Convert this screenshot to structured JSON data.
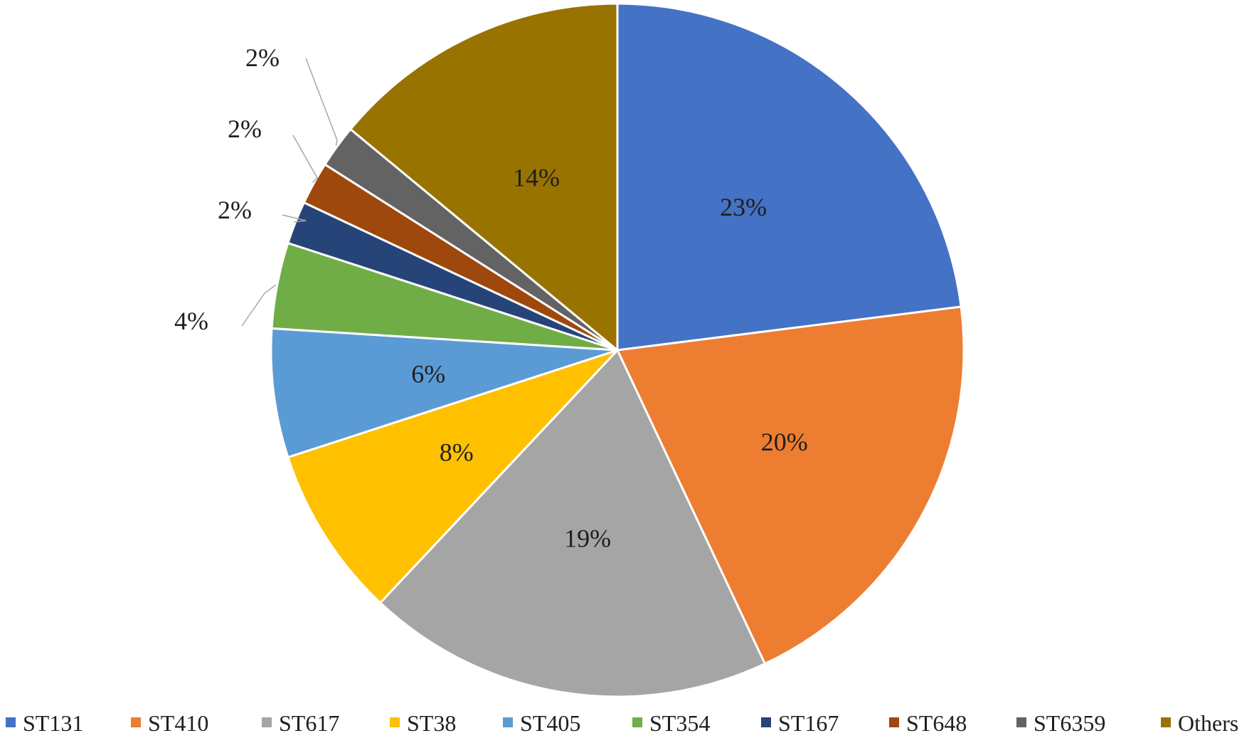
{
  "chart_data": {
    "type": "pie",
    "title": "",
    "start_angle_deg": 0,
    "direction": "clockwise",
    "legend_position": "bottom",
    "slices": [
      {
        "name": "ST131",
        "value": 23,
        "label": "23%",
        "color": "#4472C4",
        "label_placement": "inside"
      },
      {
        "name": "ST410",
        "value": 20,
        "label": "20%",
        "color": "#ED7D31",
        "label_placement": "inside"
      },
      {
        "name": "ST617",
        "value": 19,
        "label": "19%",
        "color": "#A5A5A5",
        "label_placement": "inside"
      },
      {
        "name": "ST38",
        "value": 8,
        "label": "8%",
        "color": "#FFC000",
        "label_placement": "inside"
      },
      {
        "name": "ST405",
        "value": 6,
        "label": "6%",
        "color": "#5B9BD5",
        "label_placement": "inside"
      },
      {
        "name": "ST354",
        "value": 4,
        "label": "4%",
        "color": "#70AD47",
        "label_placement": "outside"
      },
      {
        "name": "ST167",
        "value": 2,
        "label": "2%",
        "color": "#264478",
        "label_placement": "outside"
      },
      {
        "name": "ST648",
        "value": 2,
        "label": "2%",
        "color": "#9E480E",
        "label_placement": "outside"
      },
      {
        "name": "ST6359",
        "value": 2,
        "label": "2%",
        "color": "#636363",
        "label_placement": "outside"
      },
      {
        "name": "Others",
        "value": 14,
        "label": "14%",
        "color": "#997300",
        "label_placement": "inside"
      }
    ]
  }
}
